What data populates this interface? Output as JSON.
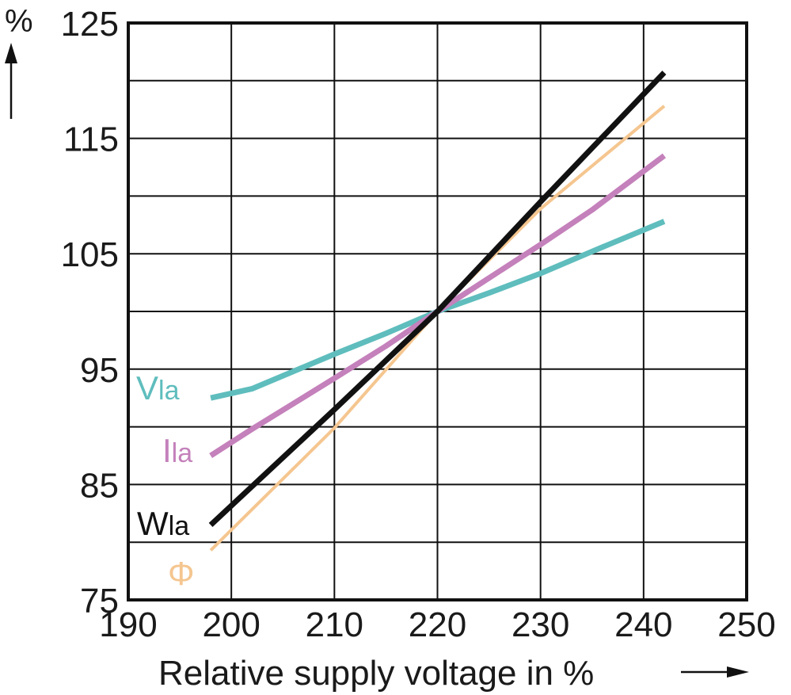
{
  "chart_data": {
    "type": "line",
    "xlabel": "Relative supply voltage in %",
    "ylabel": "%",
    "xlim": [
      190,
      250
    ],
    "ylim": [
      75,
      125
    ],
    "x_ticks": [
      190,
      200,
      210,
      220,
      230,
      240,
      250
    ],
    "y_ticks": [
      75,
      85,
      95,
      105,
      115,
      125
    ],
    "x_grid_step": 10,
    "y_grid_step": 5,
    "grid": true,
    "series": [
      {
        "key": "v",
        "name": "Vla",
        "color": "#5fbdbd",
        "points": [
          [
            198,
            92.5
          ],
          [
            202,
            93.3
          ],
          [
            210,
            96.3
          ],
          [
            215,
            98.1
          ],
          [
            220,
            100
          ],
          [
            225,
            101.6
          ],
          [
            230,
            103.3
          ],
          [
            235,
            105.2
          ],
          [
            242,
            107.8
          ]
        ]
      },
      {
        "key": "i",
        "name": "Ila",
        "color": "#c481bb",
        "points": [
          [
            198,
            87.5
          ],
          [
            202,
            89.8
          ],
          [
            210,
            94.2
          ],
          [
            215,
            97
          ],
          [
            220,
            100
          ],
          [
            225,
            102.9
          ],
          [
            230,
            105.8
          ],
          [
            235,
            108.8
          ],
          [
            242,
            113.5
          ]
        ]
      },
      {
        "key": "w",
        "name": "Wla",
        "color": "#111111",
        "points": [
          [
            198,
            81.5
          ],
          [
            210,
            91.5
          ],
          [
            220,
            100
          ],
          [
            230,
            109.5
          ],
          [
            242,
            120.7
          ]
        ]
      },
      {
        "key": "phi",
        "name": "Φ",
        "color": "#f5c690",
        "points": [
          [
            198,
            79.3
          ],
          [
            210,
            89.9
          ],
          [
            220,
            100
          ],
          [
            230,
            108.9
          ],
          [
            242,
            117.8
          ]
        ]
      }
    ]
  }
}
